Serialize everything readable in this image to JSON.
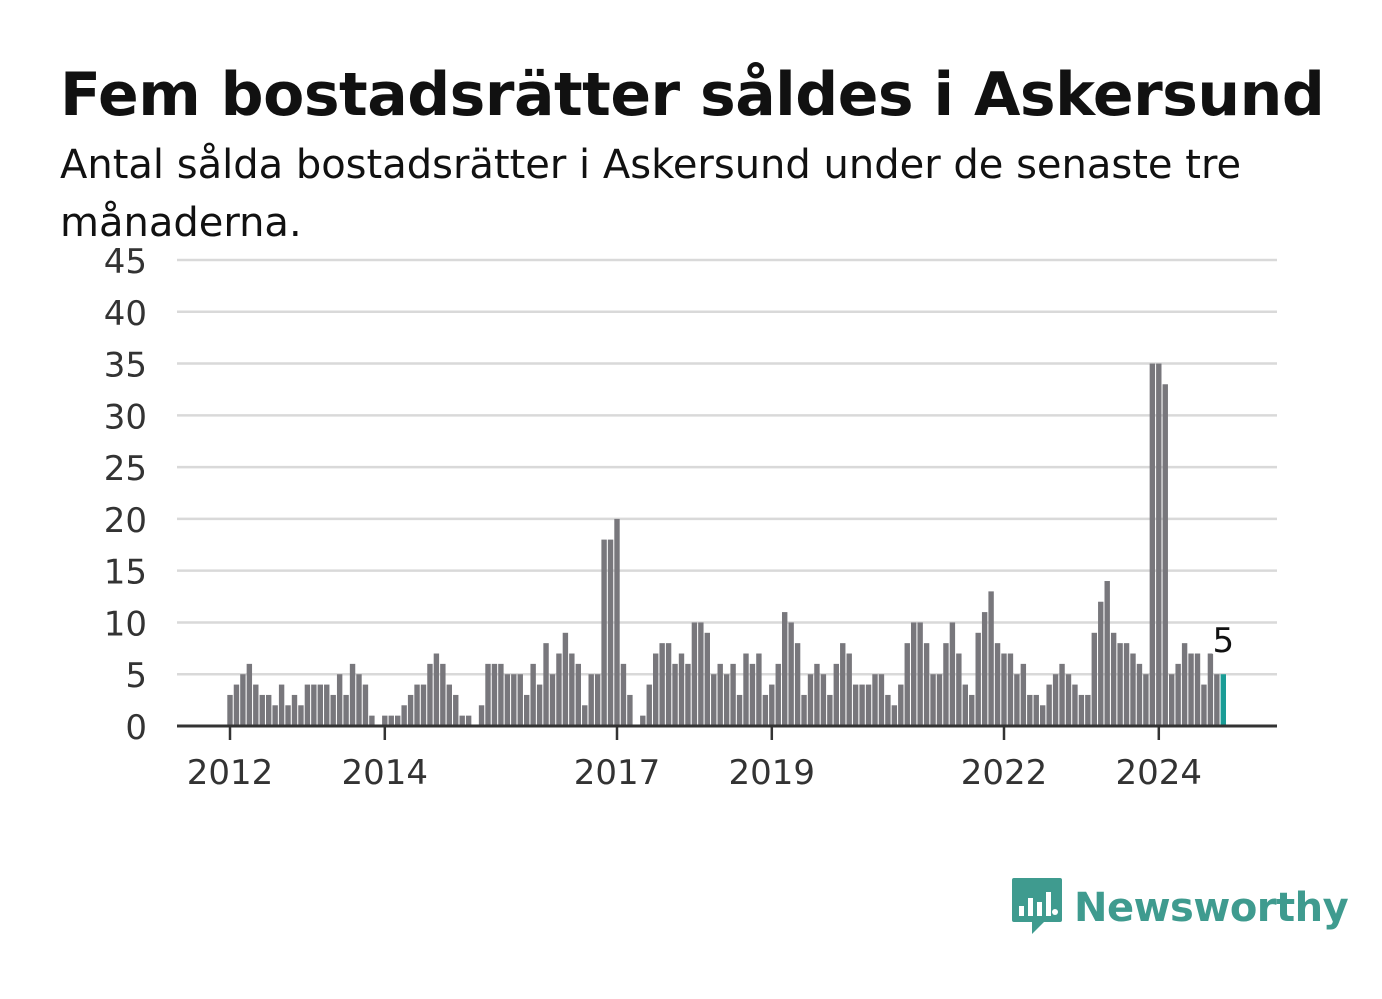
{
  "title": "Fem bostadsrätter såldes i Askersund",
  "subtitle": "Antal sålda bostadsrätter i Askersund under de senaste tre månaderna.",
  "brand": {
    "name": "Newsworthy",
    "icon": "bar-chart-speech-bubble-icon",
    "color": "#3f9b8f"
  },
  "colors": {
    "bar": "#78777c",
    "highlight": "#1a9c96",
    "grid": "#d9d9d9",
    "axis": "#333333"
  },
  "chart_data": {
    "type": "bar",
    "title": "Fem bostadsrätter såldes i Askersund",
    "xlabel": "",
    "ylabel": "",
    "ylim": [
      0,
      45
    ],
    "yticks": [
      0,
      5,
      10,
      15,
      20,
      25,
      30,
      35,
      40,
      45
    ],
    "xticks": [
      {
        "label": "2012",
        "index": 0
      },
      {
        "label": "2014",
        "index": 24
      },
      {
        "label": "2017",
        "index": 60
      },
      {
        "label": "2019",
        "index": 84
      },
      {
        "label": "2022",
        "index": 120
      },
      {
        "label": "2024",
        "index": 144
      }
    ],
    "start": "2012-01",
    "frequency": "monthly",
    "values": [
      3,
      4,
      5,
      6,
      4,
      3,
      3,
      2,
      4,
      2,
      3,
      2,
      4,
      4,
      4,
      4,
      3,
      5,
      3,
      6,
      5,
      4,
      1,
      0,
      1,
      1,
      1,
      2,
      3,
      4,
      4,
      6,
      7,
      6,
      4,
      3,
      1,
      1,
      0,
      2,
      6,
      6,
      6,
      5,
      5,
      5,
      3,
      6,
      4,
      8,
      5,
      7,
      9,
      7,
      6,
      2,
      5,
      5,
      18,
      18,
      20,
      6,
      3,
      0,
      1,
      4,
      7,
      8,
      8,
      6,
      7,
      6,
      10,
      10,
      9,
      5,
      6,
      5,
      6,
      3,
      7,
      6,
      7,
      3,
      4,
      6,
      11,
      10,
      8,
      3,
      5,
      6,
      5,
      3,
      6,
      8,
      7,
      4,
      4,
      4,
      5,
      5,
      3,
      2,
      4,
      8,
      10,
      10,
      8,
      5,
      5,
      8,
      10,
      7,
      4,
      3,
      9,
      11,
      13,
      8,
      7,
      7,
      5,
      6,
      3,
      3,
      2,
      4,
      5,
      6,
      5,
      4,
      3,
      3,
      9,
      12,
      14,
      9,
      8,
      8,
      7,
      6,
      5,
      35,
      35,
      33,
      5,
      6,
      8,
      7,
      7,
      4,
      7,
      5,
      5
    ],
    "last_value_label": "5",
    "grid": true,
    "legend": "none"
  }
}
